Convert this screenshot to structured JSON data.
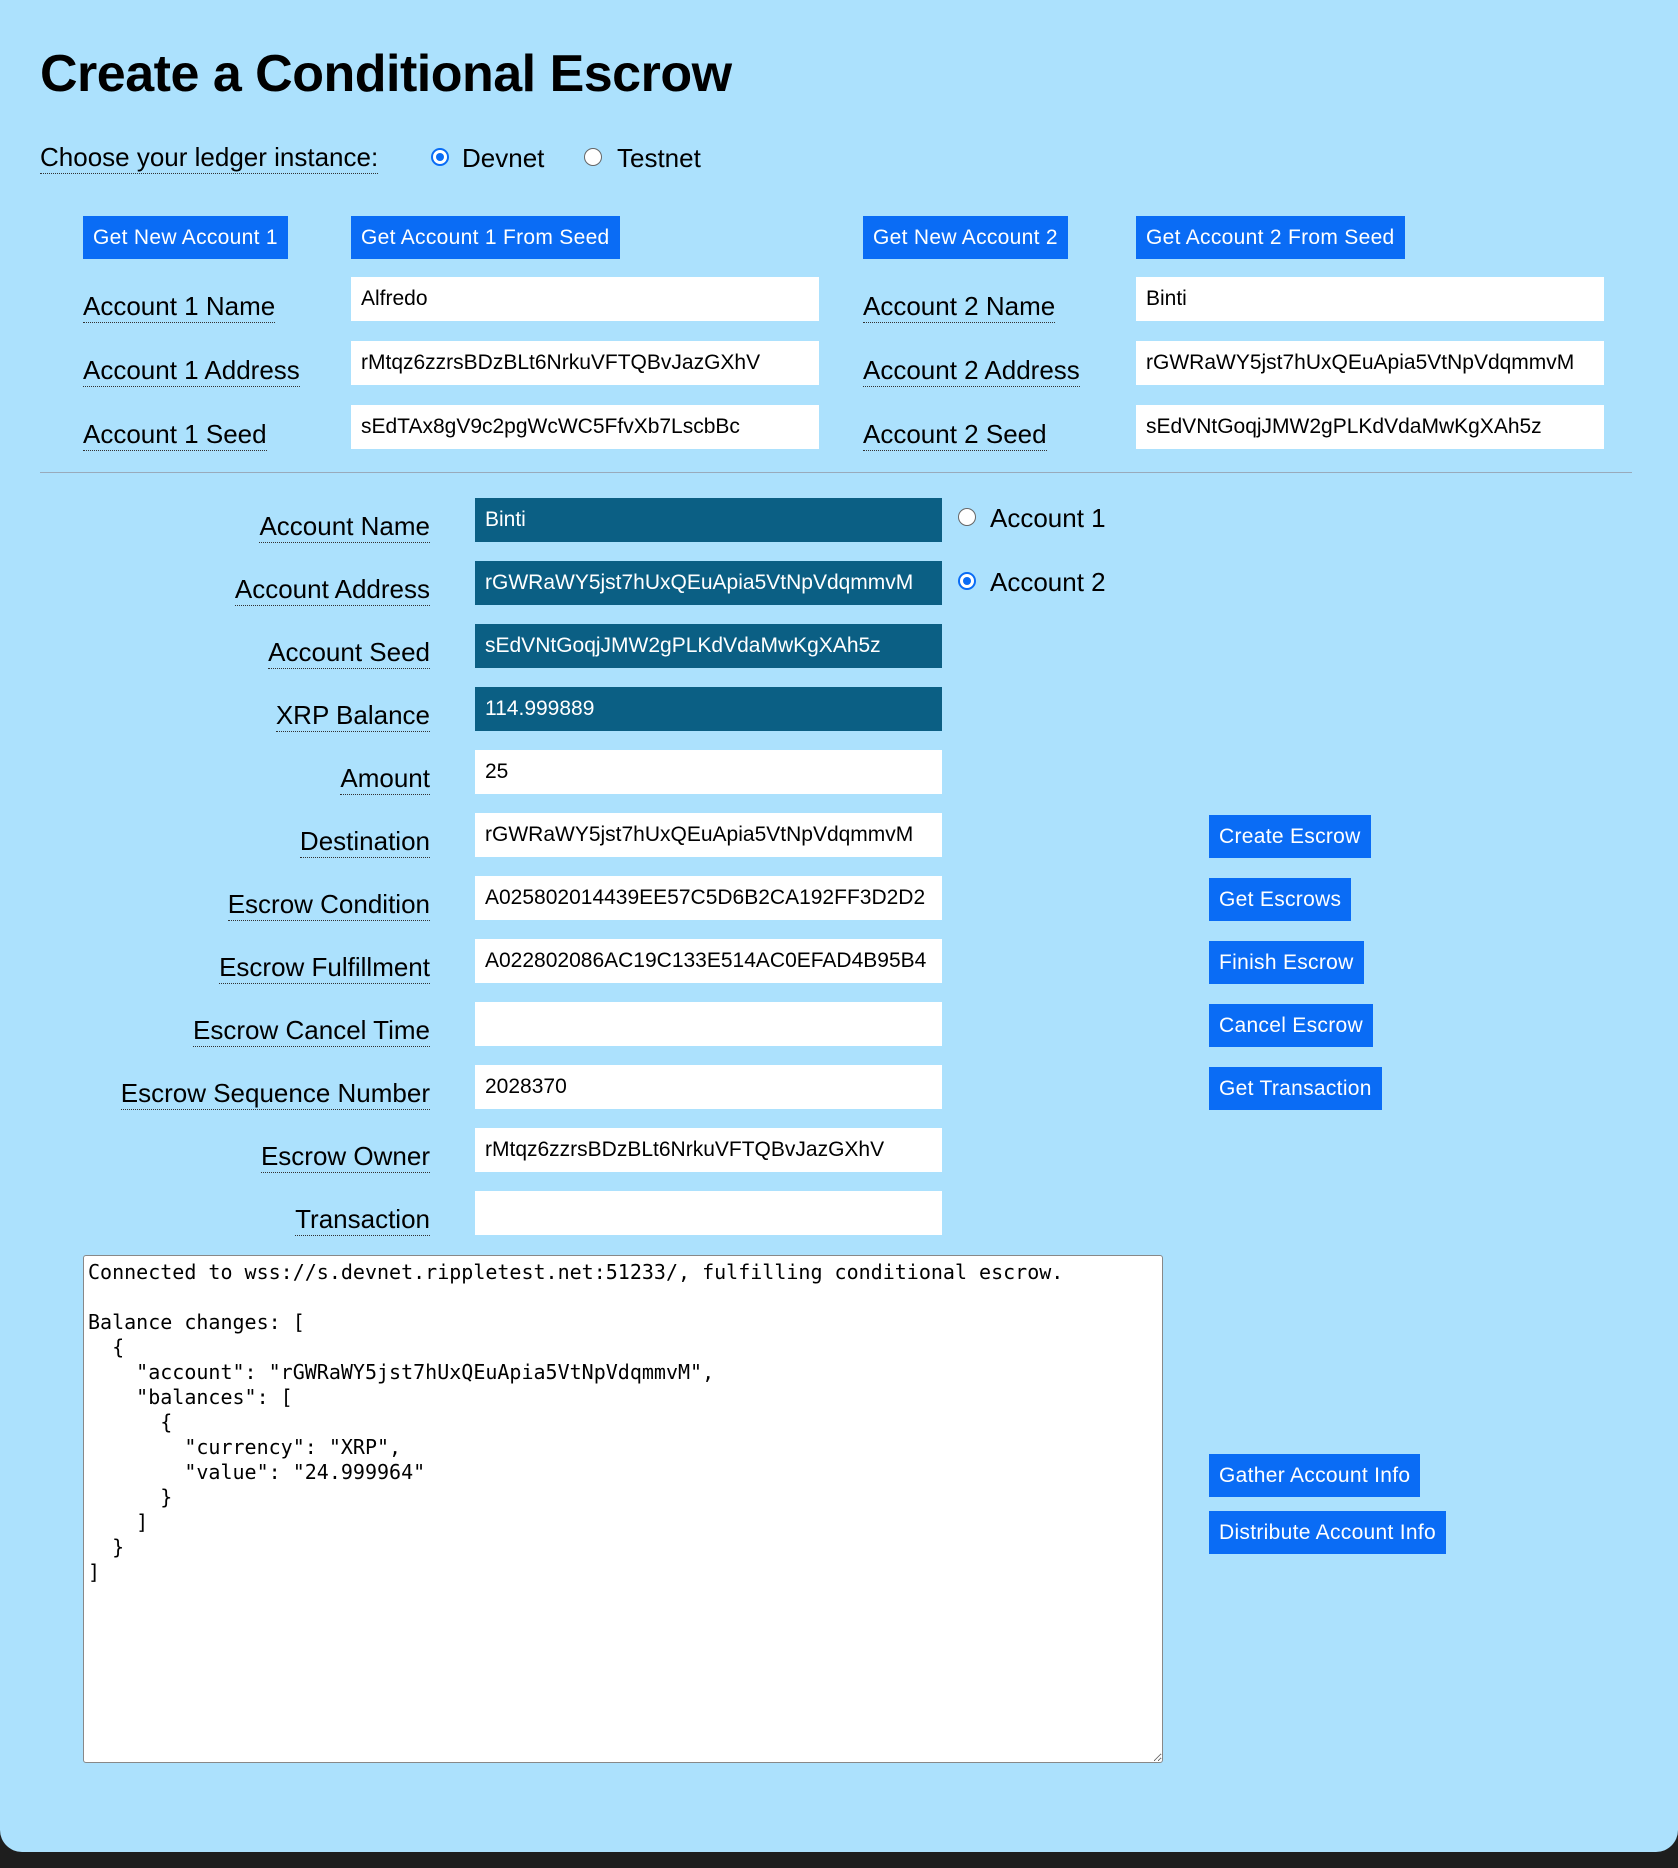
{
  "title": "Create a Conditional Escrow",
  "ledger": {
    "label": "Choose your ledger instance:",
    "options": [
      {
        "label": "Devnet",
        "selected": true
      },
      {
        "label": "Testnet",
        "selected": false
      }
    ]
  },
  "accounts": {
    "buttons": [
      "Get New Account 1",
      "Get Account 1 From Seed",
      "Get New Account 2",
      "Get Account 2 From Seed"
    ],
    "account1": {
      "labels": [
        "Account 1 Name",
        "Account 1 Address",
        "Account 1 Seed"
      ],
      "values": [
        "Alfredo",
        "rMtqz6zzrsBDzBLt6NrkuVFTQBvJazGXhV",
        "sEdTAx8gV9c2pgWcWC5FfvXb7LscbBc"
      ]
    },
    "account2": {
      "labels": [
        "Account 2 Name",
        "Account 2 Address",
        "Account 2 Seed"
      ],
      "values": [
        "Binti",
        "rGWRaWY5jst7hUxQEuApia5VtNpVdqmmvM",
        "sEdVNtGoqjJMW2gPLKdVdaMwKgXAh5z"
      ]
    }
  },
  "form": {
    "fields": [
      {
        "label": "Account Name",
        "value": "Binti"
      },
      {
        "label": "Account Address",
        "value": "rGWRaWY5jst7hUxQEuApia5VtNpVdqmmvM"
      },
      {
        "label": "Account Seed",
        "value": "sEdVNtGoqjJMW2gPLKdVdaMwKgXAh5z"
      },
      {
        "label": "XRP Balance",
        "value": "114.999889"
      },
      {
        "label": "Amount",
        "value": "25"
      },
      {
        "label": "Destination",
        "value": "rGWRaWY5jst7hUxQEuApia5VtNpVdqmmvM"
      },
      {
        "label": "Escrow Condition",
        "value": "A025802014439EE57C5D6B2CA192FF3D2D2"
      },
      {
        "label": "Escrow Fulfillment",
        "value": "A022802086AC19C133E514AC0EFAD4B95B4"
      },
      {
        "label": "Escrow Cancel Time",
        "value": ""
      },
      {
        "label": "Escrow Sequence Number",
        "value": "2028370"
      },
      {
        "label": "Escrow Owner",
        "value": "rMtqz6zzrsBDzBLt6NrkuVFTQBvJazGXhV"
      },
      {
        "label": "Transaction",
        "value": ""
      }
    ],
    "account_select": [
      {
        "label": "Account 1",
        "selected": false
      },
      {
        "label": "Account 2",
        "selected": true
      }
    ]
  },
  "actions": [
    "Create Escrow",
    "Get Escrows",
    "Finish Escrow",
    "Cancel Escrow",
    "Get Transaction"
  ],
  "info_actions": [
    "Gather Account Info",
    "Distribute Account Info"
  ],
  "results": "Connected to wss://s.devnet.rippletest.net:51233/, fulfilling conditional escrow.\n\nBalance changes: [\n  {\n    \"account\": \"rGWRaWY5jst7hUxQEuApia5VtNpVdqmmvM\",\n    \"balances\": [\n      {\n        \"currency\": \"XRP\",\n        \"value\": \"24.999964\"\n      }\n    ]\n  }\n]",
  "colors": {
    "background": "#ace1fd",
    "button": "#0a6cf5",
    "readonly_field": "#0b5f84"
  }
}
